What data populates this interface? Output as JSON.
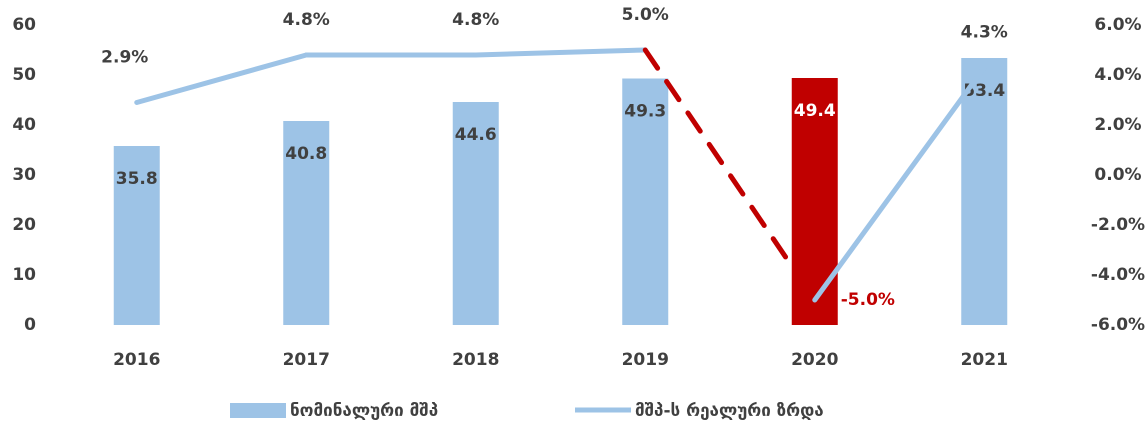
{
  "chart_data": {
    "type": "bar",
    "categories": [
      "2016",
      "2017",
      "2018",
      "2019",
      "2020",
      "2021"
    ],
    "series": [
      {
        "name": "ნომინალური მშპ",
        "type": "bar",
        "color": "#9dc3e6",
        "colors": [
          "#9dc3e6",
          "#9dc3e6",
          "#9dc3e6",
          "#9dc3e6",
          "#c00000",
          "#9dc3e6"
        ],
        "values": [
          35.8,
          40.8,
          44.6,
          49.3,
          49.4,
          53.4
        ]
      },
      {
        "name": "მშპ-ს რეალური ზრდა",
        "type": "line",
        "axis": "y2",
        "color": "#9dc3e6",
        "highlight": {
          "index": 4,
          "color": "#c00000",
          "dashed": true
        },
        "values": [
          2.9,
          4.8,
          4.8,
          5.0,
          -5.0,
          4.3
        ],
        "value_labels": [
          "2.9%",
          "4.8%",
          "4.8%",
          "5.0%",
          "-5.0%",
          "4.3%"
        ]
      }
    ],
    "ylim": [
      0,
      60
    ],
    "yticks": [
      0,
      10,
      20,
      30,
      40,
      50,
      60
    ],
    "y2lim": [
      -6,
      6
    ],
    "y2ticks": [
      {
        "value": -6,
        "label": "-6.0%"
      },
      {
        "value": -4,
        "label": "-4.0%"
      },
      {
        "value": -2,
        "label": "-2.0%"
      },
      {
        "value": 0,
        "label": "0.0%"
      },
      {
        "value": 2,
        "label": "2.0%"
      },
      {
        "value": 4,
        "label": "4.0%"
      },
      {
        "value": 6,
        "label": "6.0%"
      }
    ],
    "grid": false,
    "legend": "bottom"
  }
}
